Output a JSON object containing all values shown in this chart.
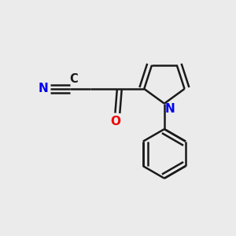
{
  "background_color": "#ebebeb",
  "bond_color": "#1a1a1a",
  "N_color": "#0000ee",
  "O_color": "#ee0000",
  "line_width": 1.8,
  "font_size": 10.5,
  "figsize": [
    3.0,
    3.0
  ],
  "dpi": 100,
  "xlim": [
    -1.3,
    1.1
  ],
  "ylim": [
    -1.3,
    1.0
  ]
}
